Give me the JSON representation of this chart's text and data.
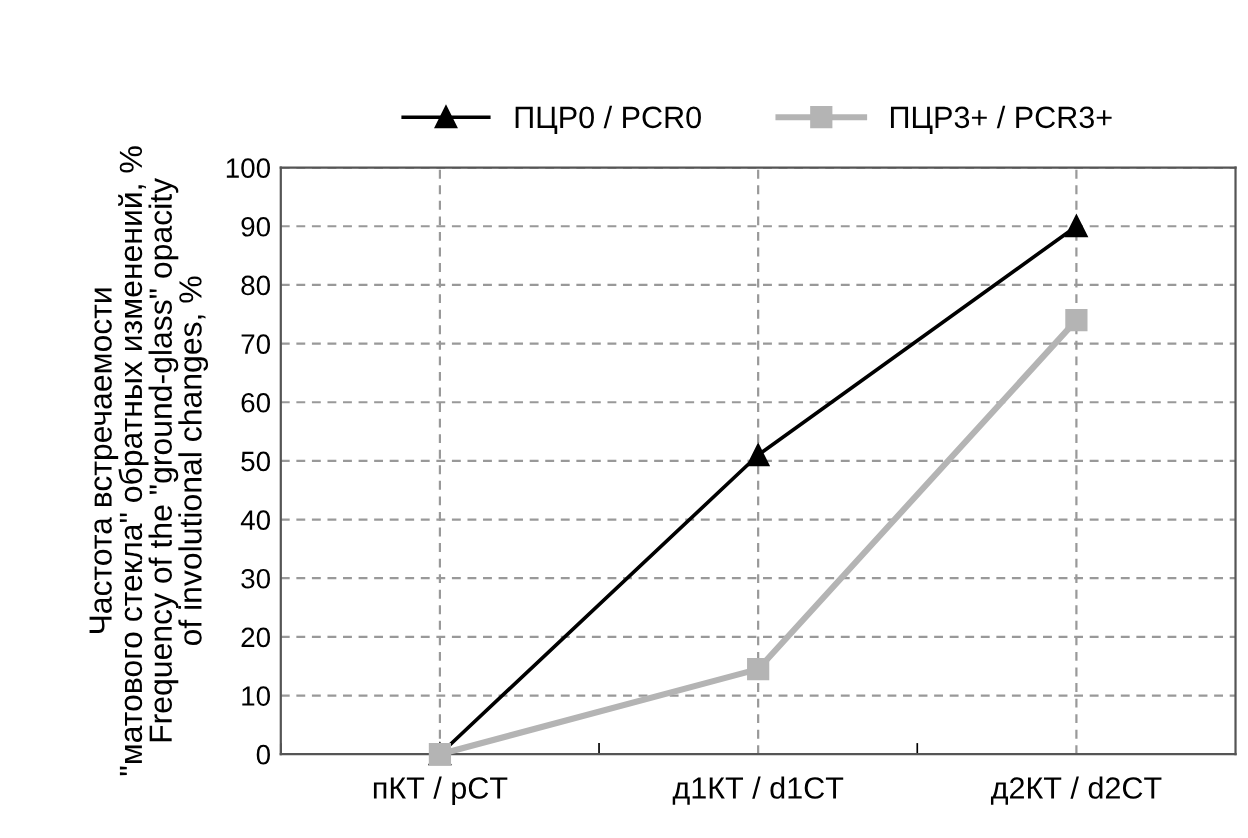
{
  "chart_data": {
    "type": "line",
    "ylabel": "Частота встречаемости\n\"матового стекла\" обратных изменений, %\nFrequency of the \"ground-glass\" opacity\nof involutional changes, %",
    "categories": [
      "пКТ / pCT",
      "д1КТ / d1CT",
      "д2КТ / d2CT"
    ],
    "series": [
      {
        "name": "ПЦР0 / PCR0",
        "color": "#000000",
        "marker": "triangle",
        "values": [
          0,
          51,
          90
        ]
      },
      {
        "name": "ПЦР3+ / PCR3+",
        "color": "#b4b4b4",
        "marker": "square",
        "values": [
          0,
          14.5,
          74
        ]
      }
    ],
    "ylim": [
      0,
      100
    ],
    "yticks": [
      0,
      10,
      20,
      30,
      40,
      50,
      60,
      70,
      80,
      90,
      100
    ],
    "grid": true,
    "legend": "top",
    "line_style": "solid"
  }
}
